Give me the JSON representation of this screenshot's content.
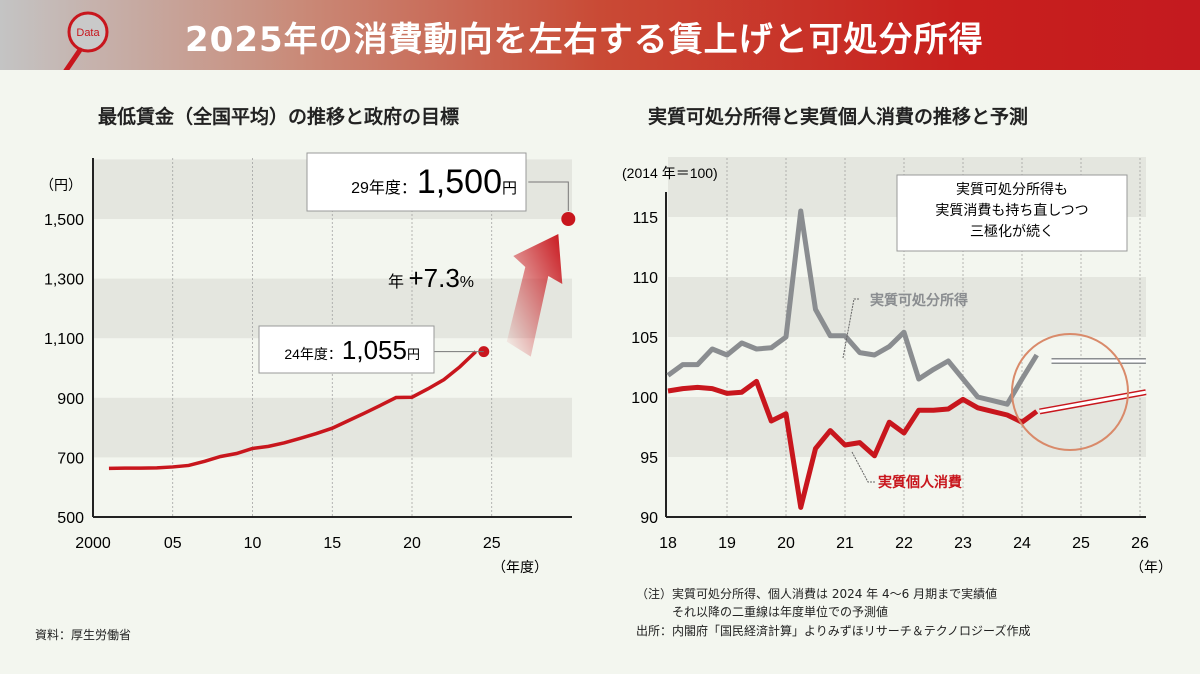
{
  "header": {
    "title": "2025年の消費動向を左右する賃上げと可処分所得",
    "logo_text": "Data"
  },
  "chart_data": [
    {
      "type": "line",
      "title": "最低賃金（全国平均）の推移と政府の目標",
      "ylabel": "（円）",
      "xlabel": "（年度）",
      "ylim": [
        500,
        1700
      ],
      "xlim": [
        2000,
        2030
      ],
      "yticks": [
        500,
        700,
        900,
        1100,
        1300,
        1500
      ],
      "ytick_labels": [
        "500",
        "700",
        "900",
        "1,100",
        "1,300",
        "1,500"
      ],
      "xticks": [
        2000,
        2005,
        2010,
        2015,
        2020,
        2025
      ],
      "xtick_labels": [
        "2000",
        "05",
        "10",
        "15",
        "20",
        "25"
      ],
      "x": [
        2001,
        2002,
        2003,
        2004,
        2005,
        2006,
        2007,
        2008,
        2009,
        2010,
        2011,
        2012,
        2013,
        2014,
        2015,
        2016,
        2017,
        2018,
        2019,
        2020,
        2021,
        2022,
        2023,
        2024
      ],
      "values": [
        663,
        664,
        664,
        665,
        668,
        673,
        687,
        703,
        713,
        730,
        737,
        749,
        764,
        780,
        798,
        823,
        848,
        874,
        901,
        902,
        930,
        961,
        1004,
        1055
      ],
      "target": {
        "x": 2029,
        "value": 1500
      },
      "annotations": {
        "current_prefix": "24年度：",
        "current_value": "1,055",
        "target_prefix": "29年度：",
        "target_value": "1,500",
        "unit": "円",
        "growth_prefix": "年 ",
        "growth": "+7.3",
        "growth_unit": "%"
      }
    },
    {
      "type": "line",
      "title": "実質可処分所得と実質個人消費の推移と予測",
      "ylabel": "(2014 年＝100)",
      "xlabel": "（年）",
      "ylim": [
        90,
        120
      ],
      "xlim": [
        18,
        26.1
      ],
      "yticks": [
        90,
        95,
        100,
        105,
        110,
        115
      ],
      "xticks": [
        18,
        19,
        20,
        21,
        22,
        23,
        24,
        25,
        26
      ],
      "x_start": 18,
      "x_step": 0.25,
      "series": [
        {
          "name": "実質可処分所得",
          "color": "#8a8d90",
          "values": [
            101.8,
            102.7,
            102.7,
            104.0,
            103.5,
            104.5,
            104.0,
            104.1,
            105.0,
            115.5,
            107.3,
            105.1,
            105.1,
            103.7,
            103.5,
            104.2,
            105.4,
            101.5,
            102.3,
            103.0,
            101.5,
            100.0,
            99.7,
            99.4,
            101.5,
            103.5
          ],
          "forecast": [
            [
              24.5,
              103.0
            ],
            [
              26.1,
              103.0
            ]
          ]
        },
        {
          "name": "実質個人消費",
          "color": "#c8161d",
          "values": [
            100.5,
            100.7,
            100.8,
            100.7,
            100.3,
            100.4,
            101.3,
            98.0,
            98.6,
            90.8,
            95.7,
            97.2,
            96.0,
            96.2,
            95.1,
            97.9,
            97.0,
            98.9,
            98.9,
            99.0,
            99.8,
            99.1,
            98.8,
            98.5,
            97.9,
            98.8
          ],
          "forecast": [
            [
              24.3,
              98.8
            ],
            [
              26.1,
              100.4
            ]
          ]
        }
      ],
      "callout": [
        "実質可処分所得も",
        "実質消費も持ち直しつつ",
        "三極化が続く"
      ]
    }
  ],
  "notes": {
    "source_left": "資料：厚生労働省",
    "note1": "（注）実質可処分所得、個人消費は 2024 年 4～6 月期まで実績値",
    "note2": "それ以降の二重線は年度単位での予測値",
    "source_right": "出所：内閣府「国民経済計算」よりみずほリサーチ＆テクノロジーズ作成"
  }
}
